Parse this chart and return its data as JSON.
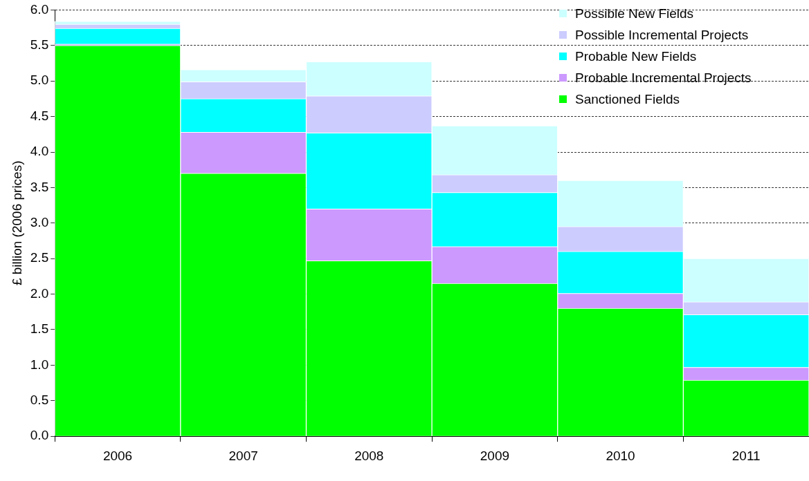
{
  "chart_data": {
    "type": "bar",
    "stacked": true,
    "ylabel": "£ billion (2006 prices)",
    "categories": [
      "2006",
      "2007",
      "2008",
      "2009",
      "2010",
      "2011"
    ],
    "series": [
      {
        "name": "Sanctioned Fields",
        "color": "#00ff00",
        "values": [
          5.5,
          3.7,
          2.47,
          2.15,
          1.8,
          0.79
        ]
      },
      {
        "name": "Probable Incremental Projects",
        "color": "#cc99ff",
        "values": [
          0.02,
          0.58,
          0.73,
          0.52,
          0.21,
          0.18
        ]
      },
      {
        "name": "Probable New Fields",
        "color": "#00ffff",
        "values": [
          0.22,
          0.47,
          1.07,
          0.76,
          0.59,
          0.74
        ]
      },
      {
        "name": "Possible Incremental Projects",
        "color": "#ccccff",
        "values": [
          0.06,
          0.24,
          0.52,
          0.25,
          0.35,
          0.18
        ]
      },
      {
        "name": "Possible New Fields",
        "color": "#ccffff",
        "values": [
          0.04,
          0.17,
          0.48,
          0.69,
          0.65,
          0.61
        ]
      }
    ],
    "ylim": [
      0,
      6
    ],
    "yticks": [
      {
        "value": 0,
        "label": "0.0"
      },
      {
        "value": 0.5,
        "label": "0.5"
      },
      {
        "value": 1,
        "label": "1.0"
      },
      {
        "value": 1.5,
        "label": "1.5"
      },
      {
        "value": 2,
        "label": "2.0"
      },
      {
        "value": 2.5,
        "label": "2.5"
      },
      {
        "value": 3,
        "label": "3.0"
      },
      {
        "value": 3.5,
        "label": "3.5"
      },
      {
        "value": 4,
        "label": "4.0"
      },
      {
        "value": 4.5,
        "label": "4.5"
      },
      {
        "value": 5,
        "label": "5.0"
      },
      {
        "value": 5.5,
        "label": "5.5"
      },
      {
        "value": 6,
        "label": "6.0"
      }
    ],
    "grid": "y",
    "legend": "top right"
  }
}
